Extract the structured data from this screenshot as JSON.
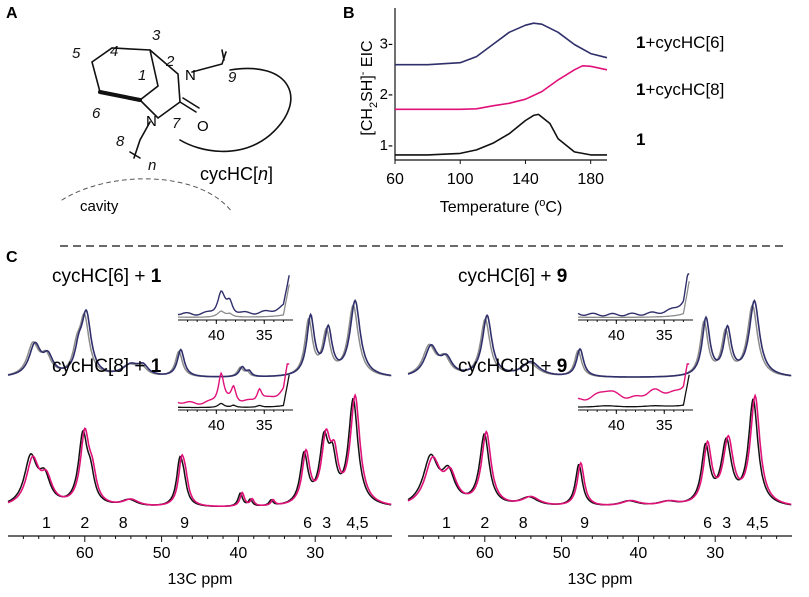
{
  "panels": {
    "a": "A",
    "b": "B",
    "c": "C"
  },
  "structure": {
    "atoms": [
      "1",
      "2",
      "3",
      "4",
      "5",
      "6",
      "7",
      "8",
      "9"
    ],
    "n_label": "n",
    "ring_label_prefix": "cycHC[",
    "ring_label_n": "n",
    "ring_label_suffix": "]",
    "cavity_label": "cavity",
    "N": "N",
    "O": "O"
  },
  "colors": {
    "navy": "#2f2f6b",
    "magenta": "#e0127a",
    "black": "#111111",
    "gray": "#8c8c8c"
  },
  "chart_data": [
    {
      "type": "line",
      "id": "eic",
      "title": "",
      "xlabel": "Temperature (oC)",
      "ylabel": "[CH2SH]- EIC",
      "xlim": [
        60,
        190
      ],
      "ylim": [
        0.7,
        3.7
      ],
      "xticks": [
        60,
        100,
        140,
        180
      ],
      "yticks": [
        1,
        2,
        3
      ],
      "ytick_labels": [
        "1-",
        "2-",
        "3-"
      ],
      "series": [
        {
          "name": "1+cycHC[6]",
          "color": "#2f2f6b",
          "x": [
            60,
            80,
            100,
            110,
            120,
            130,
            140,
            145,
            150,
            160,
            170,
            180,
            190
          ],
          "y": [
            2.58,
            2.58,
            2.62,
            2.74,
            2.98,
            3.22,
            3.36,
            3.4,
            3.38,
            3.22,
            2.98,
            2.8,
            2.72
          ]
        },
        {
          "name": "1+cycHC[8]",
          "color": "#e0127a",
          "x": [
            60,
            80,
            100,
            110,
            115,
            120,
            130,
            140,
            150,
            160,
            170,
            175,
            180,
            190
          ],
          "y": [
            1.7,
            1.7,
            1.7,
            1.71,
            1.74,
            1.77,
            1.82,
            1.9,
            2.05,
            2.28,
            2.48,
            2.56,
            2.55,
            2.48
          ]
        },
        {
          "name": "1",
          "color": "#111111",
          "x": [
            60,
            80,
            100,
            110,
            120,
            130,
            140,
            145,
            148,
            155,
            160,
            170,
            180,
            190
          ],
          "y": [
            0.8,
            0.8,
            0.83,
            0.9,
            1.03,
            1.22,
            1.48,
            1.58,
            1.6,
            1.42,
            1.12,
            0.86,
            0.8,
            0.8
          ]
        }
      ],
      "legend": [
        {
          "bold": "1",
          "rest": "+cycHC[6]"
        },
        {
          "bold": "1",
          "rest": "+cycHC[8]"
        },
        {
          "bold": "1",
          "rest": ""
        }
      ]
    },
    {
      "type": "line",
      "id": "nmr",
      "xlabel": "13C ppm",
      "xlim": [
        70,
        20
      ],
      "xticks": [
        60,
        50,
        40,
        30
      ],
      "peak_labels": [
        {
          "text": "1",
          "ppm": 65
        },
        {
          "text": "2",
          "ppm": 60
        },
        {
          "text": "8",
          "ppm": 55
        },
        {
          "text": "9",
          "ppm": 47
        },
        {
          "text": "6",
          "ppm": 31
        },
        {
          "text": "3",
          "ppm": 28.5
        },
        {
          "text": "4,5",
          "ppm": 24.5
        }
      ],
      "subpanels": [
        {
          "title": "cycHC[6] + ",
          "bold": "1",
          "inset_ticks": [
            "40",
            "35"
          ],
          "overlay": "#8c8c8c",
          "main": "#2f2f6b",
          "peaks": [
            {
              "ppm": 66.5,
              "h": 0.38,
              "w": 0.9
            },
            {
              "ppm": 64.8,
              "h": 0.22,
              "w": 0.8
            },
            {
              "ppm": 59.8,
              "h": 0.74,
              "w": 0.75
            },
            {
              "ppm": 60.8,
              "h": 0.25,
              "w": 0.6
            },
            {
              "ppm": 54,
              "h": 0.14,
              "w": 1.3
            },
            {
              "ppm": 52.4,
              "h": 0.11,
              "w": 0.8
            },
            {
              "ppm": 47.5,
              "h": 0.33,
              "w": 0.55
            },
            {
              "ppm": 39.5,
              "h": 0.12,
              "w": 0.45
            },
            {
              "ppm": 38.6,
              "h": 0.06,
              "w": 0.35
            },
            {
              "ppm": 30.6,
              "h": 0.72,
              "w": 0.6
            },
            {
              "ppm": 28.3,
              "h": 0.55,
              "w": 0.6
            },
            {
              "ppm": 24.8,
              "h": 0.92,
              "w": 0.8
            }
          ]
        },
        {
          "title": "cycHC[8] + ",
          "bold": "1",
          "inset_ticks": [
            "40",
            "35"
          ],
          "overlay": "#111111",
          "main": "#e0127a",
          "peaks": [
            {
              "ppm": 66.8,
              "h": 0.4,
              "w": 1.0
            },
            {
              "ppm": 65,
              "h": 0.22,
              "w": 0.9
            },
            {
              "ppm": 60,
              "h": 0.62,
              "w": 0.7
            },
            {
              "ppm": 59,
              "h": 0.22,
              "w": 0.6
            },
            {
              "ppm": 54,
              "h": 0.06,
              "w": 1.2
            },
            {
              "ppm": 47.4,
              "h": 0.36,
              "w": 0.5
            },
            {
              "ppm": 46.9,
              "h": 0.18,
              "w": 0.5
            },
            {
              "ppm": 39.5,
              "h": 0.12,
              "w": 0.35
            },
            {
              "ppm": 38.2,
              "h": 0.06,
              "w": 0.3
            },
            {
              "ppm": 35.5,
              "h": 0.05,
              "w": 0.3
            },
            {
              "ppm": 31.2,
              "h": 0.45,
              "w": 0.6
            },
            {
              "ppm": 28.6,
              "h": 0.55,
              "w": 0.7
            },
            {
              "ppm": 27.5,
              "h": 0.35,
              "w": 0.6
            },
            {
              "ppm": 24.8,
              "h": 0.95,
              "w": 0.75
            }
          ]
        },
        {
          "title": "cycHC[6] + ",
          "bold": "9",
          "inset_ticks": [
            "40",
            "35"
          ],
          "overlay": "#8c8c8c",
          "main": "#2f2f6b",
          "peaks": [
            {
              "ppm": 67,
              "h": 0.36,
              "w": 1.0
            },
            {
              "ppm": 65,
              "h": 0.2,
              "w": 0.9
            },
            {
              "ppm": 59.7,
              "h": 0.74,
              "w": 0.75
            },
            {
              "ppm": 54,
              "h": 0.18,
              "w": 1.4
            },
            {
              "ppm": 47.6,
              "h": 0.34,
              "w": 0.55
            },
            {
              "ppm": 31.2,
              "h": 0.7,
              "w": 0.6
            },
            {
              "ppm": 28.4,
              "h": 0.56,
              "w": 0.6
            },
            {
              "ppm": 24.9,
              "h": 0.92,
              "w": 0.8
            }
          ]
        },
        {
          "title": "cycHC[8] + ",
          "bold": "9",
          "inset_ticks": [
            "40",
            "35"
          ],
          "overlay": "#111111",
          "main": "#e0127a",
          "peaks": [
            {
              "ppm": 66.8,
              "h": 0.4,
              "w": 1.2
            },
            {
              "ppm": 64.5,
              "h": 0.25,
              "w": 1.0
            },
            {
              "ppm": 59.8,
              "h": 0.64,
              "w": 0.75
            },
            {
              "ppm": 54,
              "h": 0.08,
              "w": 1.4
            },
            {
              "ppm": 47.5,
              "h": 0.38,
              "w": 0.55
            },
            {
              "ppm": 41,
              "h": 0.05,
              "w": 1.5
            },
            {
              "ppm": 36,
              "h": 0.04,
              "w": 1.5
            },
            {
              "ppm": 31,
              "h": 0.52,
              "w": 0.65
            },
            {
              "ppm": 28.3,
              "h": 0.56,
              "w": 0.8
            },
            {
              "ppm": 24.8,
              "h": 0.95,
              "w": 0.75
            }
          ]
        }
      ]
    }
  ]
}
